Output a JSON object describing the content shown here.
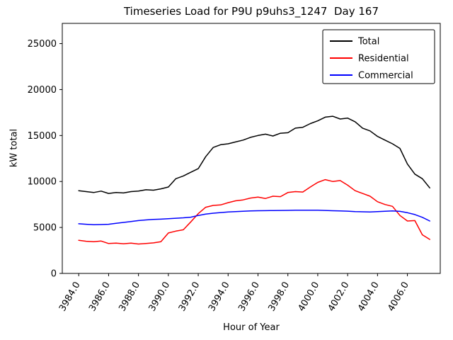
{
  "figure": {
    "title": "Timeseries Load for P9U p9uhs3_1247  Day 167",
    "xlabel": "Hour of Year",
    "ylabel": "kW total"
  },
  "chart_data": {
    "type": "line",
    "title": "Timeseries Load for P9U p9uhs3_1247  Day 167",
    "xlabel": "Hour of Year",
    "ylabel": "kW total",
    "xlim": [
      3982.9,
      4008.2
    ],
    "ylim": [
      0,
      27200
    ],
    "grid": false,
    "legend_position": "upper right",
    "x_ticks": [
      3984,
      3986,
      3988,
      3990,
      3992,
      3994,
      3996,
      3998,
      4000,
      4002,
      4004,
      4006
    ],
    "x_tick_labels": [
      "3984.0",
      "3986.0",
      "3988.0",
      "3990.0",
      "3992.0",
      "3994.0",
      "3996.0",
      "3998.0",
      "4000.0",
      "4002.0",
      "4004.0",
      "4006.0"
    ],
    "y_ticks": [
      0,
      5000,
      10000,
      15000,
      20000,
      25000
    ],
    "y_tick_labels": [
      "0",
      "5000",
      "10000",
      "15000",
      "20000",
      "25000"
    ],
    "x": [
      3984.0,
      3984.5,
      3985.0,
      3985.5,
      3986.0,
      3986.5,
      3987.0,
      3987.5,
      3988.0,
      3988.5,
      3989.0,
      3989.5,
      3990.0,
      3990.5,
      3991.0,
      3991.5,
      3992.0,
      3992.5,
      3993.0,
      3993.5,
      3994.0,
      3994.5,
      3995.0,
      3995.5,
      3996.0,
      3996.5,
      3997.0,
      3997.5,
      3998.0,
      3998.5,
      3999.0,
      3999.5,
      4000.0,
      4000.5,
      4001.0,
      4001.5,
      4002.0,
      4002.5,
      4003.0,
      4003.5,
      4004.0,
      4004.5,
      4005.0,
      4005.5,
      4006.0,
      4006.5,
      4007.0,
      4007.5
    ],
    "series": [
      {
        "name": "Total",
        "color": "#000000",
        "values": [
          9000,
          8900,
          8800,
          8950,
          8700,
          8800,
          8750,
          8900,
          8950,
          9100,
          9050,
          9200,
          9400,
          10300,
          10600,
          11000,
          11400,
          12700,
          13700,
          14000,
          14100,
          14300,
          14500,
          14800,
          15000,
          15150,
          14950,
          15250,
          15300,
          15800,
          15900,
          16300,
          16600,
          17000,
          17100,
          16800,
          16900,
          16500,
          15800,
          15500,
          14900,
          14500,
          14100,
          13600,
          11900,
          10800,
          10300,
          9300
        ]
      },
      {
        "name": "Residential",
        "color": "#ff0000",
        "values": [
          3600,
          3500,
          3450,
          3520,
          3250,
          3300,
          3230,
          3300,
          3200,
          3260,
          3320,
          3450,
          4400,
          4600,
          4750,
          5600,
          6500,
          7200,
          7400,
          7450,
          7700,
          7900,
          8000,
          8200,
          8300,
          8150,
          8400,
          8350,
          8800,
          8900,
          8850,
          9400,
          9900,
          10200,
          10000,
          10100,
          9600,
          9000,
          8700,
          8400,
          7800,
          7500,
          7300,
          6300,
          5700,
          5750,
          4200,
          3700
        ]
      },
      {
        "name": "Commercial",
        "color": "#0000ff",
        "values": [
          5400,
          5350,
          5300,
          5320,
          5350,
          5450,
          5550,
          5650,
          5750,
          5820,
          5870,
          5900,
          5950,
          6000,
          6050,
          6120,
          6300,
          6450,
          6550,
          6620,
          6680,
          6720,
          6760,
          6800,
          6820,
          6830,
          6840,
          6850,
          6860,
          6870,
          6880,
          6880,
          6870,
          6850,
          6820,
          6800,
          6770,
          6730,
          6700,
          6680,
          6720,
          6760,
          6800,
          6750,
          6600,
          6400,
          6100,
          5700
        ]
      }
    ]
  }
}
